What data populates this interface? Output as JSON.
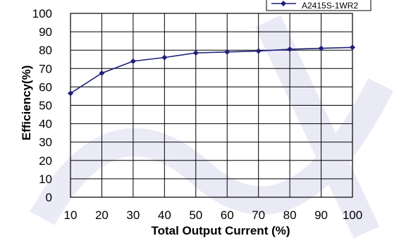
{
  "chart_data": {
    "type": "line",
    "title": "",
    "xlabel": "Total Output Current (%)",
    "ylabel": "Efficiency(%)",
    "x": [
      10,
      20,
      30,
      40,
      50,
      60,
      70,
      80,
      90,
      100
    ],
    "xlim": [
      10,
      100
    ],
    "ylim": [
      0,
      100
    ],
    "ytick_step": 10,
    "grid": true,
    "legend_position": "top-right",
    "series": [
      {
        "name": "A2415S-1WR2",
        "color": "#1f1f7a",
        "marker": "diamond",
        "values": [
          56.5,
          67.5,
          74,
          76,
          78.5,
          79,
          79.5,
          80.5,
          81,
          81.5
        ]
      }
    ]
  }
}
